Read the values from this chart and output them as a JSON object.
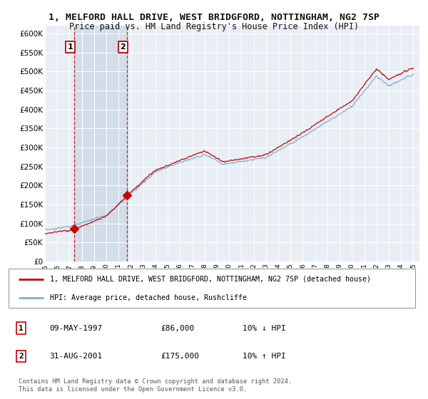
{
  "title": "1, MELFORD HALL DRIVE, WEST BRIDGFORD, NOTTINGHAM, NG2 7SP",
  "subtitle": "Price paid vs. HM Land Registry's House Price Index (HPI)",
  "ylim": [
    0,
    620000
  ],
  "xlim": [
    1995.0,
    2025.5
  ],
  "yticks": [
    0,
    50000,
    100000,
    150000,
    200000,
    250000,
    300000,
    350000,
    400000,
    450000,
    500000,
    550000,
    600000
  ],
  "ytick_labels": [
    "£0",
    "£50K",
    "£100K",
    "£150K",
    "£200K",
    "£250K",
    "£300K",
    "£350K",
    "£400K",
    "£450K",
    "£500K",
    "£550K",
    "£600K"
  ],
  "sale1_x": 1997.36,
  "sale1_y": 86000,
  "sale1_label": "1",
  "sale2_x": 2001.66,
  "sale2_y": 175000,
  "sale2_label": "2",
  "line_red_color": "#cc0000",
  "line_blue_color": "#7bafd4",
  "bg_color": "#e8eef4",
  "grid_color": "#ffffff",
  "shade_color": "#d0dce8",
  "legend1_label": "1, MELFORD HALL DRIVE, WEST BRIDGFORD, NOTTINGHAM, NG2 7SP (detached house)",
  "legend2_label": "HPI: Average price, detached house, Rushcliffe",
  "table_row1": [
    "1",
    "09-MAY-1997",
    "£86,000",
    "10% ↓ HPI"
  ],
  "table_row2": [
    "2",
    "31-AUG-2001",
    "£175,000",
    "10% ↑ HPI"
  ],
  "footer": "Contains HM Land Registry data © Crown copyright and database right 2024.\nThis data is licensed under the Open Government Licence v3.0."
}
